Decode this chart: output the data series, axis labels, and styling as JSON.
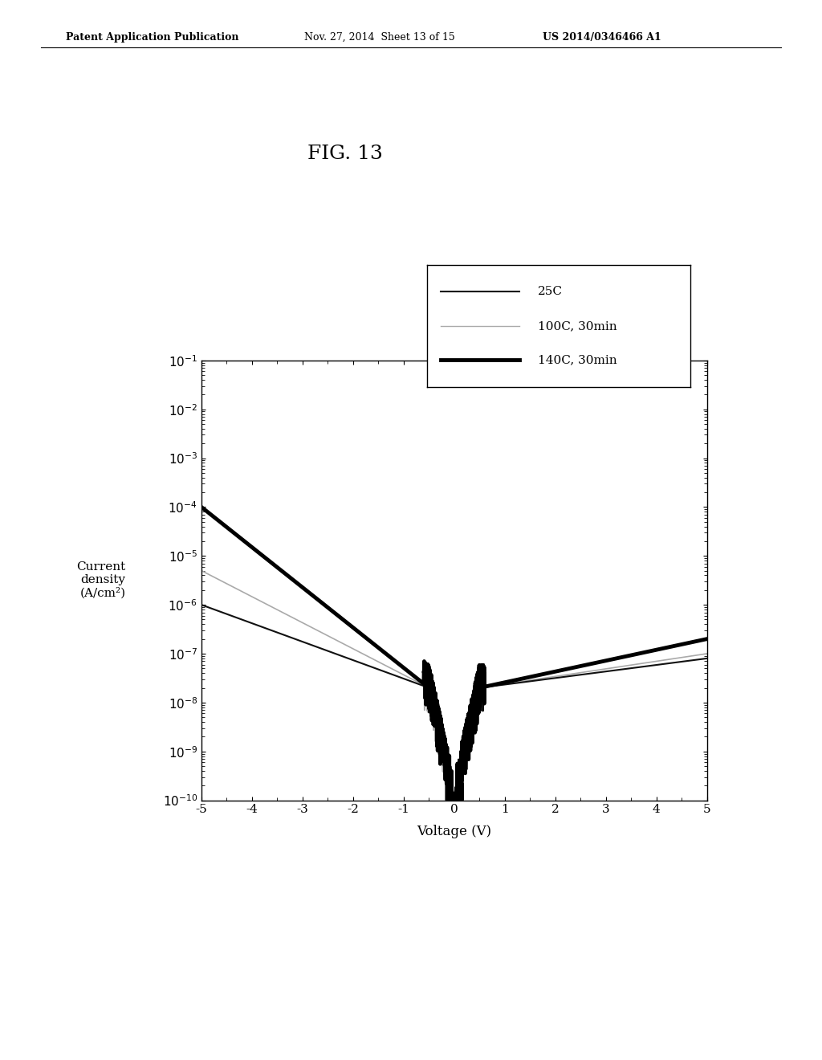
{
  "title": "FIG. 13",
  "xlabel": "Voltage (V)",
  "ylabel": "Current\ndensity\n(A/cm²)",
  "header_left": "Patent Application Publication",
  "header_mid": "Nov. 27, 2014  Sheet 13 of 15",
  "header_right": "US 2014/0346466 A1",
  "xlim": [
    -5,
    5
  ],
  "ylim_log": [
    -10,
    -1
  ],
  "xticks": [
    -5,
    -4,
    -3,
    -2,
    -1,
    0,
    1,
    2,
    3,
    4,
    5
  ],
  "legend_labels": [
    "25C",
    "100C, 30min",
    "140C, 30min"
  ],
  "legend_colors": [
    "#000000",
    "#aaaaaa",
    "#000000"
  ],
  "legend_linewidths": [
    1.5,
    1.0,
    3.5
  ],
  "bg_color": "#ffffff",
  "fig_width": 10.24,
  "fig_height": 13.2
}
